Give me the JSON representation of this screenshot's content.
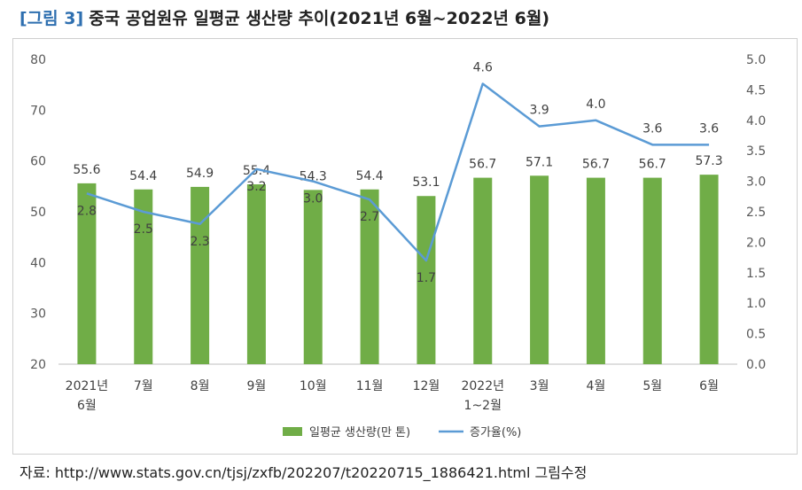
{
  "header": {
    "figure_label": "[그림 3]",
    "title": "중국 공업원유 일평균 생산량 추이(2021년 6월~2022년 6월)"
  },
  "source": {
    "text": "자료: http://www.stats.gov.cn/tjsj/zxfb/202207/t20220715_1886421.html 그림수정"
  },
  "chart_data": {
    "type": "bar",
    "categories": [
      [
        "2021년",
        "6월"
      ],
      [
        "7월"
      ],
      [
        "8월"
      ],
      [
        "9월"
      ],
      [
        "10월"
      ],
      [
        "11월"
      ],
      [
        "12월"
      ],
      [
        "2022년",
        "1~2월"
      ],
      [
        "3월"
      ],
      [
        "4월"
      ],
      [
        "5월"
      ],
      [
        "6월"
      ]
    ],
    "series": [
      {
        "name": "일평균 생산량(만 톤)",
        "type": "bar",
        "axis": "left",
        "color": "#70ad47",
        "values": [
          55.6,
          54.4,
          54.9,
          55.4,
          54.3,
          54.4,
          53.1,
          56.7,
          57.1,
          56.7,
          56.7,
          57.3
        ]
      },
      {
        "name": "증가율(%)",
        "type": "line",
        "axis": "right",
        "color": "#5b9bd5",
        "values": [
          2.8,
          2.5,
          2.3,
          3.2,
          3.0,
          2.7,
          1.7,
          4.6,
          3.9,
          4.0,
          3.6,
          3.6
        ]
      }
    ],
    "y_left": {
      "ylim": [
        20,
        80
      ],
      "ticks": [
        "20",
        "30",
        "40",
        "50",
        "60",
        "70",
        "80"
      ]
    },
    "y_right": {
      "ylim": [
        0,
        5
      ],
      "ticks": [
        "0.0",
        "0.5",
        "1.0",
        "1.5",
        "2.0",
        "2.5",
        "3.0",
        "3.5",
        "4.0",
        "4.5",
        "5.0"
      ]
    },
    "grid": false,
    "legend": "bottom"
  }
}
